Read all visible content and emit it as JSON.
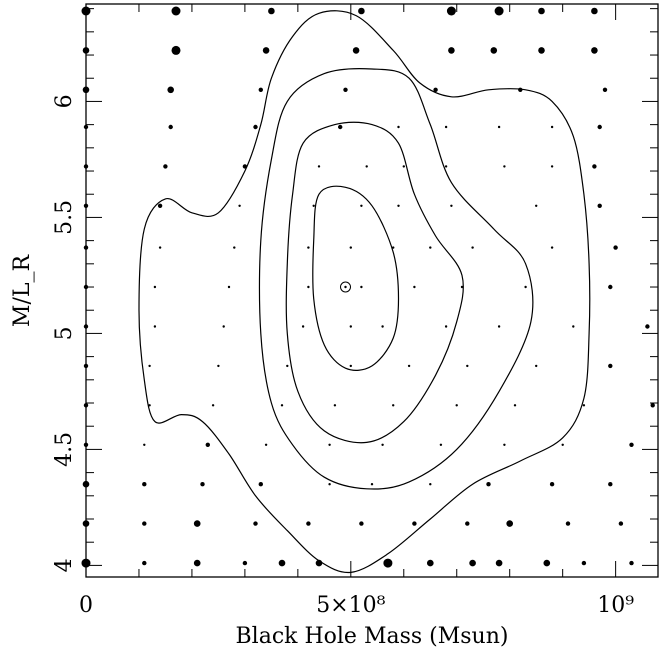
{
  "chart_data": {
    "type": "scatter",
    "xlabel": "Black Hole Mass (Msun)",
    "ylabel": "M/L_R",
    "xlim": [
      0,
      1080000000.0
    ],
    "ylim": [
      3.95,
      6.42
    ],
    "grid": false,
    "x_ticks": [
      {
        "value": 0,
        "label": "0"
      },
      {
        "value": 500000000,
        "label": "5×10⁸"
      },
      {
        "value": 1000000000,
        "label": "10⁹"
      }
    ],
    "y_ticks": [
      {
        "value": 4,
        "label": "4"
      },
      {
        "value": 4.5,
        "label": "4.5"
      },
      {
        "value": 5,
        "label": "5"
      },
      {
        "value": 5.5,
        "label": "5.5"
      },
      {
        "value": 6,
        "label": "6"
      }
    ],
    "best_fit": {
      "x": 490000000,
      "y": 5.2
    },
    "grid_points": {
      "description_free": true,
      "rows": [
        {
          "y": 6.39,
          "pts": [
            [
              0,
              4
            ],
            [
              170000000,
              4
            ],
            [
              350000000,
              3
            ],
            [
              520000000,
              3
            ],
            [
              690000000,
              4
            ],
            [
              780000000,
              4
            ],
            [
              860000000,
              3
            ],
            [
              960000000,
              3
            ]
          ]
        },
        {
          "y": 6.22,
          "pts": [
            [
              0,
              3
            ],
            [
              170000000,
              4
            ],
            [
              340000000,
              3
            ],
            [
              510000000,
              3
            ],
            [
              690000000,
              3
            ],
            [
              770000000,
              3
            ],
            [
              860000000,
              3
            ],
            [
              960000000,
              3
            ]
          ]
        },
        {
          "y": 6.05,
          "pts": [
            [
              0,
              3
            ],
            [
              160000000,
              3
            ],
            [
              330000000,
              2
            ],
            [
              490000000,
              2
            ],
            [
              660000000,
              2
            ],
            [
              820000000,
              2
            ],
            [
              980000000,
              2
            ]
          ]
        },
        {
          "y": 5.89,
          "pts": [
            [
              0,
              2
            ],
            [
              160000000,
              2
            ],
            [
              320000000,
              2
            ],
            [
              480000000,
              2
            ],
            [
              590000000,
              1
            ],
            [
              680000000,
              1
            ],
            [
              780000000,
              1
            ],
            [
              880000000,
              1
            ],
            [
              970000000,
              2
            ]
          ]
        },
        {
          "y": 5.72,
          "pts": [
            [
              0,
              2
            ],
            [
              150000000,
              2
            ],
            [
              300000000,
              2
            ],
            [
              440000000,
              1
            ],
            [
              530000000,
              1
            ],
            [
              600000000,
              1
            ],
            [
              680000000,
              1
            ],
            [
              790000000,
              1
            ],
            [
              880000000,
              1
            ],
            [
              960000000,
              2
            ]
          ]
        },
        {
          "y": 5.55,
          "pts": [
            [
              0,
              2
            ],
            [
              140000000,
              2
            ],
            [
              290000000,
              1
            ],
            [
              430000000,
              1
            ],
            [
              520000000,
              1
            ],
            [
              590000000,
              1
            ],
            [
              690000000,
              1
            ],
            [
              850000000,
              1
            ],
            [
              970000000,
              2
            ]
          ]
        },
        {
          "y": 5.37,
          "pts": [
            [
              0,
              2
            ],
            [
              140000000,
              1
            ],
            [
              280000000,
              1
            ],
            [
              420000000,
              1
            ],
            [
              500000000,
              1
            ],
            [
              580000000,
              1
            ],
            [
              650000000,
              1
            ],
            [
              730000000,
              1
            ],
            [
              880000000,
              1
            ],
            [
              1000000000,
              2
            ]
          ]
        },
        {
          "y": 5.2,
          "pts": [
            [
              0,
              2
            ],
            [
              130000000,
              1
            ],
            [
              270000000,
              1
            ],
            [
              420000000,
              1
            ],
            [
              520000000,
              1
            ],
            [
              620000000,
              1
            ],
            [
              710000000,
              1
            ],
            [
              830000000,
              1
            ],
            [
              990000000,
              2
            ]
          ]
        },
        {
          "y": 5.03,
          "pts": [
            [
              0,
              2
            ],
            [
              130000000,
              1
            ],
            [
              260000000,
              1
            ],
            [
              410000000,
              1
            ],
            [
              500000000,
              1
            ],
            [
              560000000,
              1
            ],
            [
              680000000,
              1
            ],
            [
              780000000,
              1
            ],
            [
              920000000,
              1
            ],
            [
              1060000000,
              2
            ]
          ]
        },
        {
          "y": 4.86,
          "pts": [
            [
              0,
              2
            ],
            [
              120000000,
              1
            ],
            [
              250000000,
              1
            ],
            [
              380000000,
              1
            ],
            [
              500000000,
              1
            ],
            [
              610000000,
              1
            ],
            [
              720000000,
              1
            ],
            [
              850000000,
              1
            ],
            [
              990000000,
              2
            ]
          ]
        },
        {
          "y": 4.69,
          "pts": [
            [
              0,
              2
            ],
            [
              120000000,
              1
            ],
            [
              240000000,
              1
            ],
            [
              370000000,
              1
            ],
            [
              470000000,
              1
            ],
            [
              580000000,
              1
            ],
            [
              700000000,
              1
            ],
            [
              810000000,
              1
            ],
            [
              940000000,
              1
            ],
            [
              1070000000,
              2
            ]
          ]
        },
        {
          "y": 4.52,
          "pts": [
            [
              0,
              2
            ],
            [
              110000000,
              1
            ],
            [
              230000000,
              2
            ],
            [
              340000000,
              1
            ],
            [
              460000000,
              1
            ],
            [
              560000000,
              1
            ],
            [
              670000000,
              1
            ],
            [
              790000000,
              1
            ],
            [
              900000000,
              1
            ],
            [
              1030000000,
              2
            ]
          ]
        },
        {
          "y": 4.35,
          "pts": [
            [
              0,
              3
            ],
            [
              110000000,
              2
            ],
            [
              220000000,
              2
            ],
            [
              330000000,
              2
            ],
            [
              460000000,
              1
            ],
            [
              540000000,
              1
            ],
            [
              650000000,
              1
            ],
            [
              760000000,
              2
            ],
            [
              880000000,
              2
            ],
            [
              990000000,
              2
            ]
          ]
        },
        {
          "y": 4.18,
          "pts": [
            [
              0,
              3
            ],
            [
              110000000,
              2
            ],
            [
              210000000,
              3
            ],
            [
              320000000,
              2
            ],
            [
              420000000,
              2
            ],
            [
              520000000,
              2
            ],
            [
              620000000,
              2
            ],
            [
              720000000,
              2
            ],
            [
              800000000,
              3
            ],
            [
              910000000,
              2
            ],
            [
              1010000000,
              2
            ]
          ]
        },
        {
          "y": 4.01,
          "pts": [
            [
              0,
              4
            ],
            [
              110000000,
              2
            ],
            [
              210000000,
              3
            ],
            [
              300000000,
              2
            ],
            [
              370000000,
              3
            ],
            [
              440000000,
              3
            ],
            [
              570000000,
              4
            ],
            [
              650000000,
              3
            ],
            [
              730000000,
              3
            ],
            [
              780000000,
              3
            ],
            [
              870000000,
              3
            ],
            [
              940000000,
              2
            ],
            [
              1030000000,
              2
            ]
          ]
        }
      ]
    },
    "contours": [
      [
        [
          440000000,
          5.6
        ],
        [
          490000000,
          5.63
        ],
        [
          540000000,
          5.55
        ],
        [
          580000000,
          5.35
        ],
        [
          590000000,
          5.15
        ],
        [
          580000000,
          4.98
        ],
        [
          540000000,
          4.86
        ],
        [
          490000000,
          4.85
        ],
        [
          450000000,
          4.95
        ],
        [
          430000000,
          5.15
        ],
        [
          430000000,
          5.4
        ],
        [
          440000000,
          5.6
        ]
      ],
      [
        [
          410000000,
          5.82
        ],
        [
          470000000,
          5.9
        ],
        [
          540000000,
          5.9
        ],
        [
          590000000,
          5.82
        ],
        [
          620000000,
          5.6
        ],
        [
          660000000,
          5.42
        ],
        [
          710000000,
          5.25
        ],
        [
          700000000,
          5.05
        ],
        [
          660000000,
          4.82
        ],
        [
          600000000,
          4.62
        ],
        [
          530000000,
          4.53
        ],
        [
          450000000,
          4.58
        ],
        [
          400000000,
          4.75
        ],
        [
          380000000,
          5.0
        ],
        [
          380000000,
          5.3
        ],
        [
          390000000,
          5.6
        ],
        [
          410000000,
          5.82
        ]
      ],
      [
        [
          380000000,
          6.0
        ],
        [
          450000000,
          6.12
        ],
        [
          540000000,
          6.14
        ],
        [
          610000000,
          6.1
        ],
        [
          650000000,
          5.9
        ],
        [
          690000000,
          5.65
        ],
        [
          770000000,
          5.45
        ],
        [
          830000000,
          5.3
        ],
        [
          840000000,
          5.05
        ],
        [
          780000000,
          4.75
        ],
        [
          700000000,
          4.5
        ],
        [
          610000000,
          4.36
        ],
        [
          530000000,
          4.33
        ],
        [
          450000000,
          4.38
        ],
        [
          390000000,
          4.52
        ],
        [
          350000000,
          4.7
        ],
        [
          330000000,
          5.0
        ],
        [
          330000000,
          5.4
        ],
        [
          350000000,
          5.75
        ],
        [
          380000000,
          6.0
        ]
      ],
      [
        [
          350000000,
          6.1
        ],
        [
          390000000,
          6.28
        ],
        [
          440000000,
          6.38
        ],
        [
          510000000,
          6.37
        ],
        [
          580000000,
          6.22
        ],
        [
          630000000,
          6.08
        ],
        [
          690000000,
          6.02
        ],
        [
          760000000,
          6.05
        ],
        [
          830000000,
          6.05
        ],
        [
          880000000,
          6.0
        ],
        [
          920000000,
          5.85
        ],
        [
          940000000,
          5.6
        ],
        [
          950000000,
          5.3
        ],
        [
          950000000,
          5.0
        ],
        [
          940000000,
          4.72
        ],
        [
          900000000,
          4.55
        ],
        [
          820000000,
          4.45
        ],
        [
          730000000,
          4.35
        ],
        [
          650000000,
          4.2
        ],
        [
          570000000,
          4.05
        ],
        [
          500000000,
          3.97
        ],
        [
          440000000,
          4.02
        ],
        [
          380000000,
          4.15
        ],
        [
          320000000,
          4.3
        ],
        [
          270000000,
          4.48
        ],
        [
          220000000,
          4.62
        ],
        [
          180000000,
          4.65
        ],
        [
          130000000,
          4.62
        ],
        [
          110000000,
          4.8
        ],
        [
          100000000,
          5.1
        ],
        [
          110000000,
          5.45
        ],
        [
          150000000,
          5.58
        ],
        [
          200000000,
          5.52
        ],
        [
          250000000,
          5.52
        ],
        [
          300000000,
          5.7
        ],
        [
          330000000,
          5.9
        ],
        [
          350000000,
          6.1
        ]
      ]
    ]
  }
}
